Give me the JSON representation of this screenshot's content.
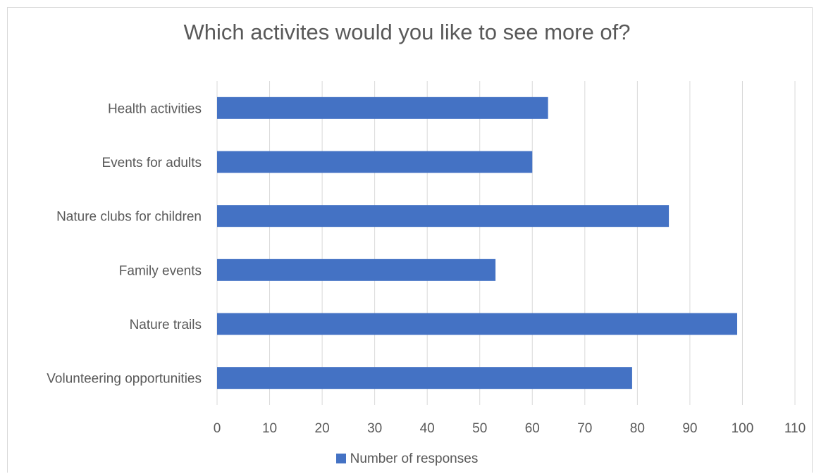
{
  "chart_data": {
    "type": "bar",
    "orientation": "horizontal",
    "title": "Which activites would you like to see more of?",
    "categories": [
      "Health activities",
      "Events for adults",
      "Nature clubs for children",
      "Family events",
      "Nature trails",
      "Volunteering opportunities"
    ],
    "series": [
      {
        "name": "Number of responses",
        "values": [
          63,
          60,
          86,
          53,
          99,
          79
        ],
        "color": "#4472c4"
      }
    ],
    "xlim": [
      0,
      110
    ],
    "xticks": [
      "0",
      "10",
      "20",
      "30",
      "40",
      "50",
      "60",
      "70",
      "80",
      "90",
      "100",
      "110"
    ],
    "grid": true,
    "legend_position": "bottom"
  }
}
